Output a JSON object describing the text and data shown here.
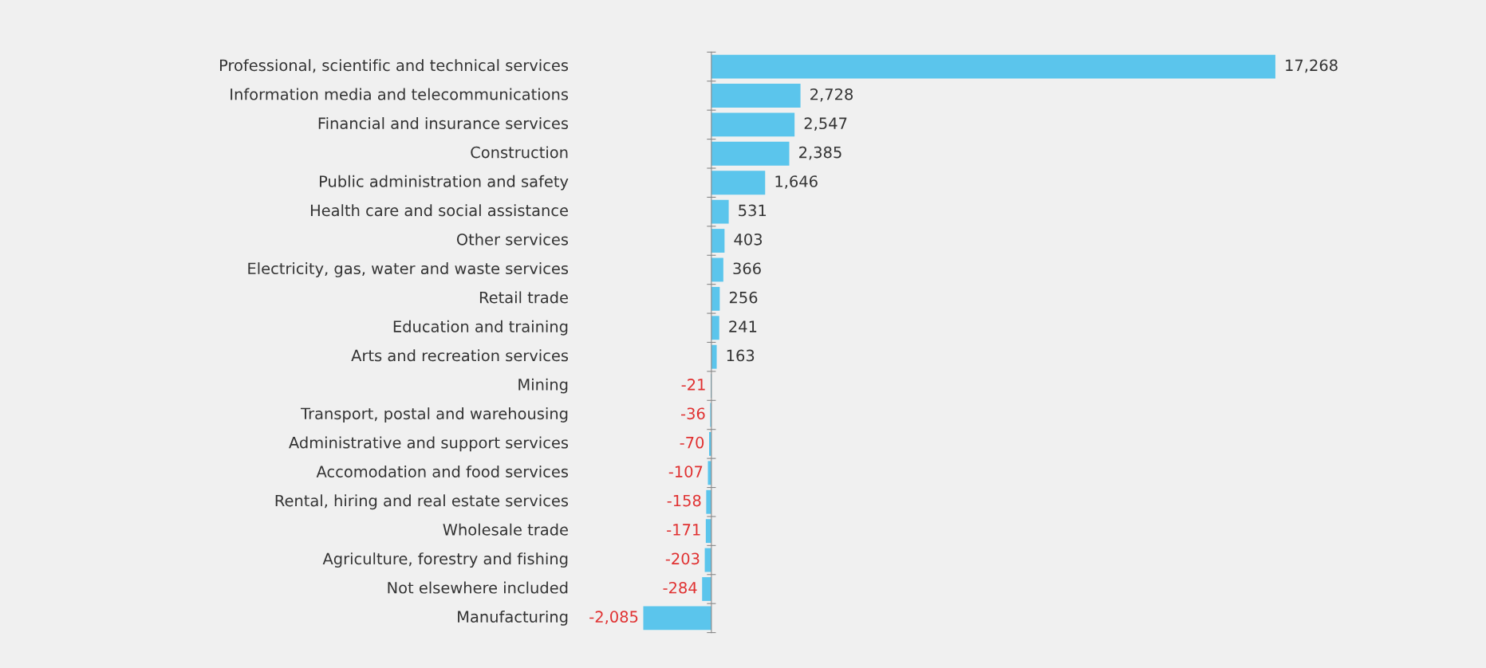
{
  "chart_data": {
    "type": "bar",
    "orientation": "horizontal",
    "value_labels": [
      "17,268",
      "2,728",
      "2,547",
      "2,385",
      "1,646",
      "531",
      "403",
      "366",
      "256",
      "241",
      "163",
      "-21",
      "-36",
      "-70",
      "-107",
      "-158",
      "-171",
      "-203",
      "-284",
      "-2,085"
    ],
    "grid": false,
    "legend": false,
    "color": "#5bc5ec",
    "categories": [
      "Professional, scientific and technical services",
      "Information media and telecommunications",
      "Financial and insurance services",
      "Construction",
      "Public administration and safety",
      "Health care and social assistance",
      "Other services",
      "Electricity, gas, water and waste services",
      "Retail trade",
      "Education and training",
      "Arts and recreation services",
      "Mining",
      "Transport, postal and warehousing",
      "Administrative and support services",
      "Accomodation and food services",
      "Rental, hiring and real estate services",
      "Wholesale trade",
      "Agriculture, forestry and fishing",
      "Not elsewhere included",
      "Manufacturing"
    ],
    "values": [
      17268,
      2728,
      2547,
      2385,
      1646,
      531,
      403,
      366,
      256,
      241,
      163,
      -21,
      -36,
      -70,
      -107,
      -158,
      -171,
      -203,
      -284,
      -2085
    ]
  }
}
